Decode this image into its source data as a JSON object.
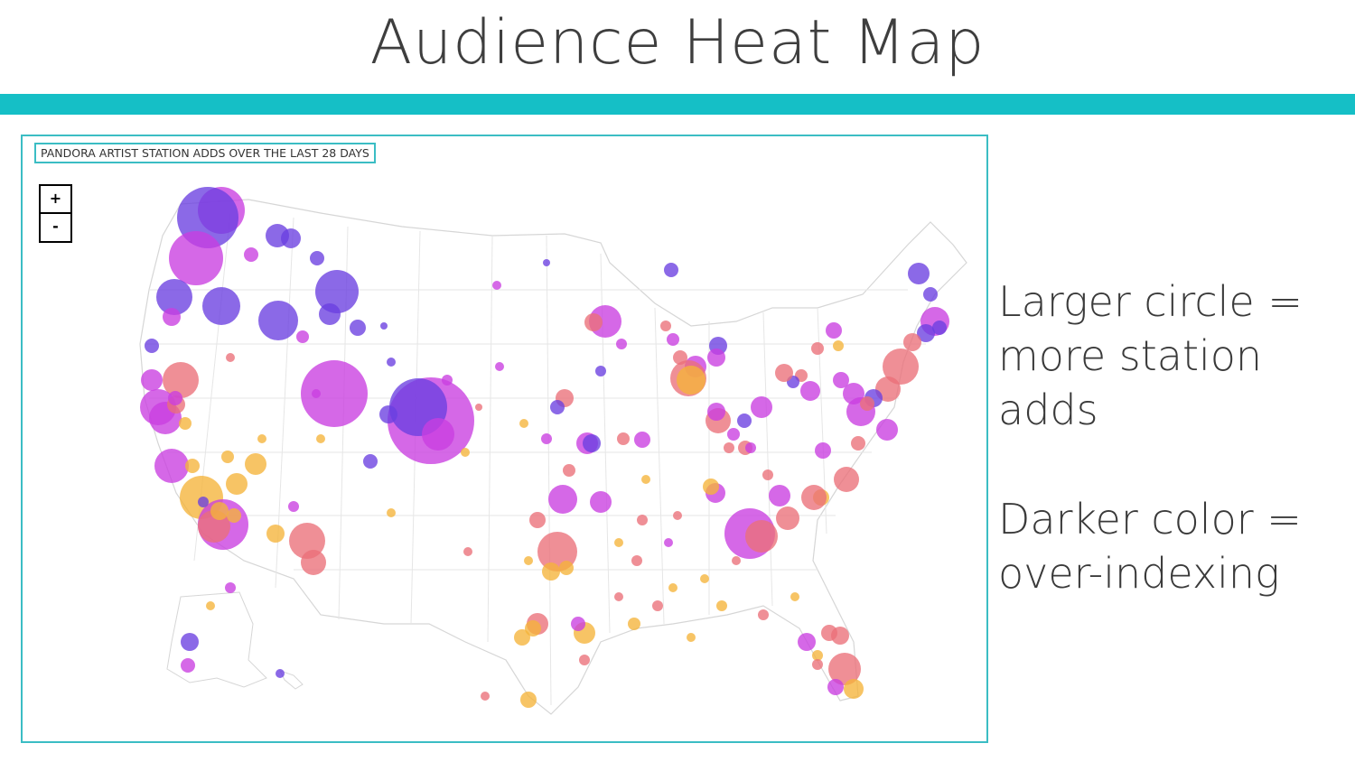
{
  "slide": {
    "title": "Audience Heat Map",
    "notes": [
      "Larger circle = more station adds",
      "Darker color = over-indexing"
    ],
    "accent_color": "#15bfc6"
  },
  "map": {
    "label": "PANDORA ARTIST STATION ADDS OVER THE LAST 28 DAYS",
    "zoom_in_label": "+",
    "zoom_out_label": "-",
    "palette": {
      "high_over_index": "#6a3fe0",
      "over_index": "#c93ee0",
      "neutral": "#eb6f78",
      "under_index": "#f5b43a"
    }
  }
}
